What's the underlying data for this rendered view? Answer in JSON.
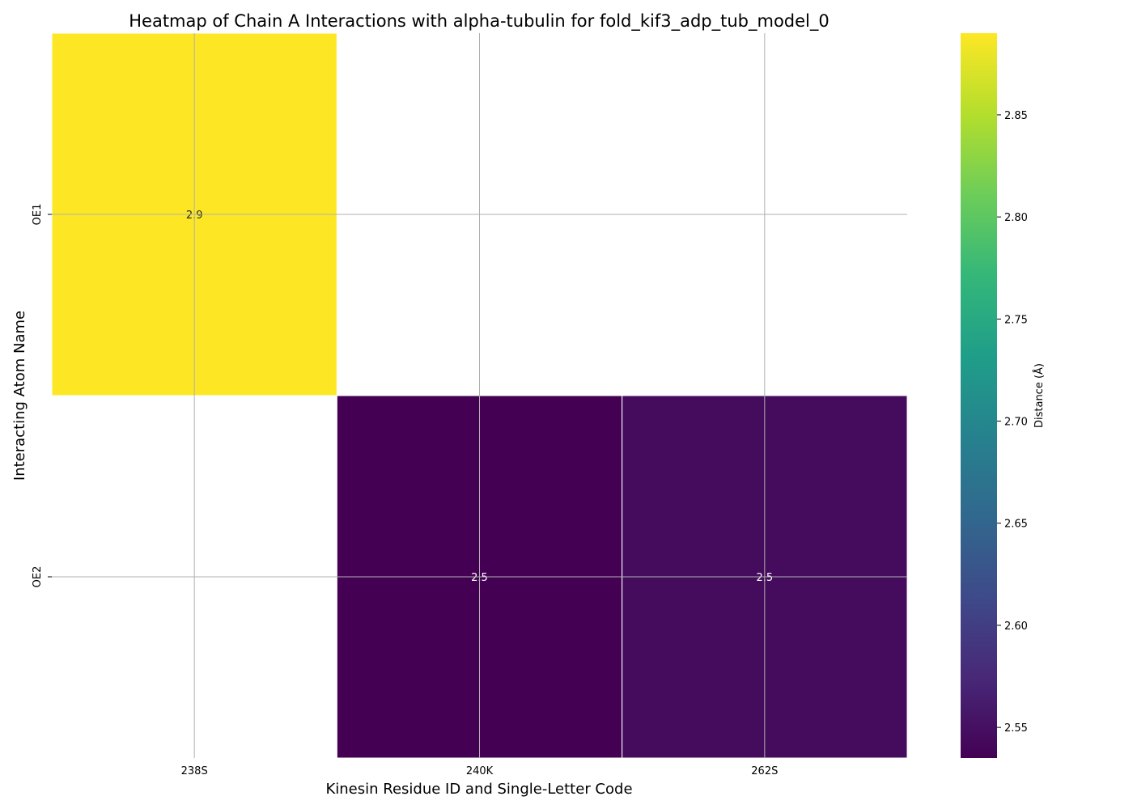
{
  "chart_data": {
    "type": "heatmap",
    "title": "Heatmap of Chain A Interactions with alpha-tubulin for fold_kif3_adp_tub_model_0",
    "xlabel": "Kinesin Residue ID and Single-Letter Code",
    "ylabel": "Interacting Atom Name",
    "x_categories": [
      "238S",
      "240K",
      "262S"
    ],
    "y_categories": [
      "OE1",
      "OE2"
    ],
    "values": [
      [
        2.89,
        null,
        null
      ],
      [
        null,
        2.535,
        2.545
      ]
    ],
    "cell_labels": [
      [
        "2.9",
        "",
        ""
      ],
      [
        "",
        "2.5",
        "2.5"
      ]
    ],
    "colorbar": {
      "label": "Distance (Å)",
      "colormap": "viridis",
      "vmin": 2.535,
      "vmax": 2.89,
      "ticks": [
        2.55,
        2.6,
        2.65,
        2.7,
        2.75,
        2.8,
        2.85
      ],
      "tick_labels": [
        "2.55",
        "2.60",
        "2.65",
        "2.70",
        "2.75",
        "2.80",
        "2.85"
      ]
    },
    "grid": true,
    "colors": {
      "missing": "#ffffff",
      "grid": "#b0b0b0",
      "text": "#000000"
    }
  }
}
